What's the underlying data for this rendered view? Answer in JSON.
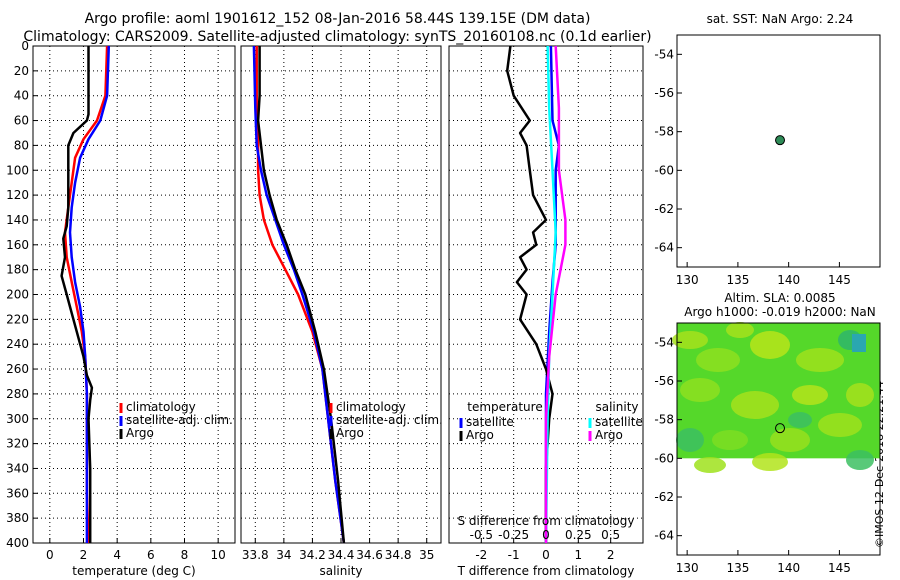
{
  "header": {
    "title_line1": "Argo profile: aoml 1901612_152 08-Jan-2016 58.44S 139.15E (DM data)",
    "title_line2": "Climatology: CARS2009. Satellite-adjusted climatology: synTS_20160108.nc (0.1d earlier)"
  },
  "right_panels": {
    "sst_title": "sat. SST: NaN Argo: 2.24",
    "sla_title_line1": "Altim. SLA: 0.0085",
    "sla_title_line2": "Argo h1000: -0.019 h2000: NaN",
    "credit": "©IMOS 12-Dec-2018 22:21:44"
  },
  "colors": {
    "climatology": "#ff0000",
    "satellite": "#0000ff",
    "argo": "#000000",
    "sat_salinity": "#00ffff",
    "argo_salinity": "#ff00ff",
    "float_marker": "#2e8b57"
  },
  "chart_data": [
    {
      "type": "line",
      "name": "temperature",
      "xlabel": "temperature (deg C)",
      "ylabel": "",
      "xlim": [
        -1,
        11
      ],
      "ylim": [
        400,
        0
      ],
      "xticks": [
        0,
        2,
        4,
        6,
        8,
        10
      ],
      "yticks": [
        0,
        20,
        40,
        60,
        80,
        100,
        120,
        140,
        160,
        180,
        200,
        220,
        240,
        260,
        280,
        300,
        320,
        340,
        360,
        380,
        400
      ],
      "legend": [
        "climatology",
        "satellite-adj. clim.",
        "Argo"
      ],
      "series": [
        {
          "name": "climatology",
          "color": "red",
          "depth": [
            0,
            40,
            60,
            75,
            90,
            110,
            130,
            150,
            170,
            190,
            210,
            230,
            250,
            280,
            320,
            360,
            400
          ],
          "values": [
            3.4,
            3.3,
            2.8,
            2.0,
            1.5,
            1.3,
            1.1,
            0.9,
            1.0,
            1.3,
            1.6,
            1.9,
            2.1,
            2.2,
            2.2,
            2.2,
            2.3
          ]
        },
        {
          "name": "satellite-adj. clim.",
          "color": "blue",
          "depth": [
            0,
            40,
            60,
            75,
            90,
            110,
            130,
            150,
            170,
            190,
            210,
            230,
            250,
            280,
            320,
            360,
            400
          ],
          "values": [
            3.5,
            3.4,
            3.0,
            2.3,
            1.8,
            1.5,
            1.3,
            1.2,
            1.3,
            1.5,
            1.8,
            2.0,
            2.1,
            2.2,
            2.2,
            2.2,
            2.2
          ]
        },
        {
          "name": "Argo",
          "color": "black",
          "depth": [
            0,
            55,
            60,
            70,
            80,
            95,
            110,
            130,
            145,
            155,
            170,
            185,
            200,
            215,
            230,
            250,
            265,
            275,
            285,
            300,
            340,
            400
          ],
          "values": [
            2.3,
            2.3,
            2.2,
            1.4,
            1.1,
            1.1,
            1.1,
            1.1,
            1.0,
            0.8,
            0.9,
            0.7,
            1.0,
            1.3,
            1.6,
            2.0,
            2.2,
            2.5,
            2.4,
            2.3,
            2.4,
            2.4
          ]
        }
      ]
    },
    {
      "type": "line",
      "name": "salinity",
      "xlabel": "salinity",
      "ylabel": "",
      "xlim": [
        33.7,
        35.1
      ],
      "ylim": [
        400,
        0
      ],
      "xticks": [
        33.8,
        34,
        34.2,
        34.4,
        34.6,
        34.8,
        35
      ],
      "xtick_labels": [
        "33.8",
        "34",
        "34.2",
        "34.4",
        "34.6",
        "34.8",
        "35"
      ],
      "legend": [
        "climatology",
        "satellite-adj. clim.",
        "Argo"
      ],
      "series": [
        {
          "name": "climatology",
          "color": "red",
          "depth": [
            0,
            50,
            80,
            100,
            120,
            140,
            160,
            180,
            200,
            230,
            260,
            300,
            350,
            400
          ],
          "values": [
            33.81,
            33.81,
            33.82,
            33.82,
            33.83,
            33.86,
            33.92,
            34.01,
            34.1,
            34.2,
            34.27,
            34.31,
            34.36,
            34.42
          ]
        },
        {
          "name": "satellite-adj. clim.",
          "color": "blue",
          "depth": [
            0,
            50,
            80,
            100,
            120,
            140,
            160,
            180,
            200,
            230,
            260,
            300,
            350,
            400
          ],
          "values": [
            33.79,
            33.8,
            33.81,
            33.84,
            33.88,
            33.94,
            34.0,
            34.07,
            34.13,
            34.21,
            34.27,
            34.31,
            34.36,
            34.42
          ]
        },
        {
          "name": "Argo",
          "color": "black",
          "depth": [
            0,
            40,
            60,
            80,
            100,
            120,
            140,
            160,
            180,
            200,
            230,
            260,
            300,
            350,
            400
          ],
          "values": [
            33.83,
            33.83,
            33.82,
            33.84,
            33.86,
            33.9,
            33.95,
            34.02,
            34.08,
            34.15,
            34.22,
            34.28,
            34.33,
            34.38,
            34.42
          ]
        }
      ]
    },
    {
      "type": "line",
      "name": "differences",
      "xlabel": "T difference from climatology",
      "top_xlabel": "S difference from climatology",
      "xlim": [
        -3,
        3
      ],
      "ylim": [
        400,
        0
      ],
      "xticks": [
        -2,
        -1,
        0,
        1,
        2
      ],
      "top_xticks": [
        -2,
        -1,
        0,
        1,
        2
      ],
      "top_xtick_labels": [
        "-0.5",
        "-0.25",
        "0",
        "0.25",
        "0.5"
      ],
      "legend_temperature": {
        "title": "temperature",
        "entries": [
          "satellite",
          "Argo"
        ]
      },
      "legend_salinity": {
        "title": "salinity",
        "entries": [
          "satellite",
          "Argo"
        ]
      },
      "series": [
        {
          "name": "T satellite",
          "color": "blue",
          "depth": [
            0,
            60,
            80,
            100,
            130,
            160,
            190,
            230,
            280,
            400
          ],
          "values": [
            0.15,
            0.2,
            0.4,
            0.3,
            0.3,
            0.3,
            0.2,
            0.1,
            0.0,
            0.0
          ]
        },
        {
          "name": "T Argo",
          "color": "black",
          "depth": [
            0,
            20,
            40,
            60,
            70,
            80,
            100,
            120,
            140,
            150,
            160,
            170,
            180,
            190,
            200,
            220,
            240,
            260,
            280,
            300,
            340,
            400
          ],
          "values": [
            -1.1,
            -1.2,
            -1.0,
            -0.5,
            -0.8,
            -0.6,
            -0.5,
            -0.4,
            0.0,
            -0.4,
            -0.3,
            -0.8,
            -0.6,
            -0.9,
            -0.6,
            -0.8,
            -0.3,
            0.0,
            0.2,
            0.1,
            0.0,
            0.0
          ]
        },
        {
          "name": "S satellite",
          "color": "cyan",
          "depth": [
            0,
            50,
            100,
            150,
            200,
            250,
            300,
            400
          ],
          "values": [
            0.05,
            0.1,
            0.2,
            0.3,
            0.2,
            0.1,
            0.05,
            0.0
          ]
        },
        {
          "name": "S Argo",
          "color": "magenta",
          "depth": [
            0,
            50,
            100,
            140,
            160,
            200,
            250,
            300,
            400
          ],
          "values": [
            0.3,
            0.4,
            0.4,
            0.6,
            0.6,
            0.3,
            0.1,
            0.0,
            0.0
          ]
        }
      ]
    },
    {
      "type": "scatter",
      "name": "sst-map",
      "title": "sat. SST: NaN Argo: 2.24",
      "xlim": [
        129,
        149
      ],
      "ylim": [
        -65,
        -53
      ],
      "xticks": [
        130,
        135,
        140,
        145
      ],
      "yticks": [
        -54,
        -56,
        -58,
        -60,
        -62,
        -64
      ],
      "points": [
        {
          "x": 139.15,
          "y": -58.44
        }
      ]
    },
    {
      "type": "heatmap",
      "name": "sla-map",
      "title": "Altim. SLA: 0.0085",
      "xlim": [
        129,
        149
      ],
      "ylim": [
        -65,
        -53
      ],
      "xticks": [
        130,
        135,
        140,
        145
      ],
      "yticks": [
        -54,
        -56,
        -58,
        -60,
        -62,
        -64
      ],
      "data_extent_lat": [
        -60,
        -53
      ],
      "points": [
        {
          "x": 139.15,
          "y": -58.44
        }
      ]
    }
  ]
}
